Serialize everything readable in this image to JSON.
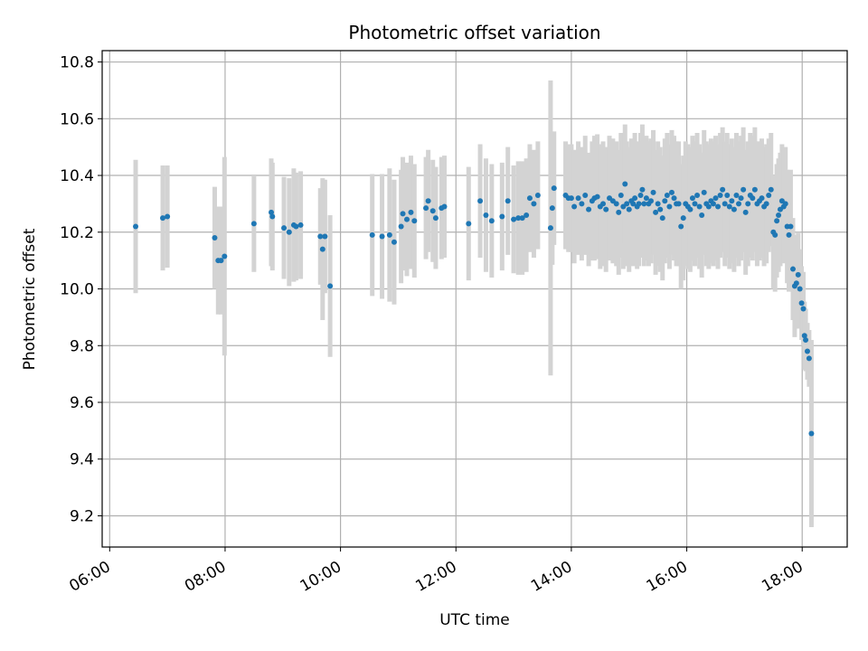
{
  "chart_data": {
    "type": "scatter",
    "title": "Photometric offset variation",
    "xlabel": "UTC time",
    "ylabel": "Photometric offset",
    "x_unit": "hours UTC",
    "xlim": [
      5.87,
      18.78
    ],
    "ylim": [
      9.09,
      10.84
    ],
    "x_ticks": [
      6,
      8,
      10,
      12,
      14,
      16,
      18
    ],
    "x_tick_labels": [
      "06:00",
      "08:00",
      "10:00",
      "12:00",
      "14:00",
      "16:00",
      "18:00"
    ],
    "y_ticks": [
      9.2,
      9.4,
      9.6,
      9.8,
      10.0,
      10.2,
      10.4,
      10.6,
      10.8
    ],
    "y_tick_labels": [
      "9.2",
      "9.4",
      "9.6",
      "9.8",
      "10.0",
      "10.2",
      "10.4",
      "10.6",
      "10.8"
    ],
    "grid": true,
    "colors": {
      "marker": "#1f77b4",
      "errorbar": "#d3d3d3",
      "grid": "#b0b0b0",
      "axes": "#000000"
    },
    "series": [
      {
        "x": [
          6.45,
          6.92,
          7.0,
          7.82,
          7.88,
          7.93,
          7.99,
          8.5,
          8.8,
          8.82,
          9.02,
          9.11,
          9.19,
          9.23,
          9.31,
          9.65,
          9.69,
          9.73,
          9.82,
          10.55,
          10.72,
          10.85,
          10.93,
          11.05,
          11.08,
          11.15,
          11.22,
          11.28,
          11.48,
          11.52,
          11.6,
          11.65,
          11.75,
          11.8,
          12.22,
          12.42,
          12.52,
          12.62,
          12.8,
          12.9,
          13.0,
          13.08,
          13.15,
          13.22,
          13.28,
          13.35,
          13.42,
          13.64,
          13.67,
          13.7
        ],
        "y": [
          10.22,
          10.25,
          10.255,
          10.18,
          10.1,
          10.1,
          10.115,
          10.23,
          10.27,
          10.255,
          10.215,
          10.2,
          10.225,
          10.22,
          10.225,
          10.185,
          10.14,
          10.185,
          10.01,
          10.19,
          10.185,
          10.19,
          10.165,
          10.22,
          10.265,
          10.245,
          10.27,
          10.24,
          10.285,
          10.31,
          10.275,
          10.25,
          10.285,
          10.29,
          10.23,
          10.31,
          10.26,
          10.24,
          10.255,
          10.31,
          10.245,
          10.25,
          10.25,
          10.26,
          10.32,
          10.3,
          10.33,
          10.215,
          10.285,
          10.355
        ],
        "err": [
          0.235,
          0.185,
          0.18,
          0.18,
          0.19,
          0.19,
          0.35,
          0.17,
          0.19,
          0.19,
          0.18,
          0.19,
          0.2,
          0.19,
          0.19,
          0.17,
          0.25,
          0.2,
          0.25,
          0.215,
          0.22,
          0.235,
          0.22,
          0.2,
          0.2,
          0.2,
          0.2,
          0.2,
          0.18,
          0.18,
          0.18,
          0.18,
          0.18,
          0.18,
          0.2,
          0.2,
          0.2,
          0.2,
          0.19,
          0.19,
          0.19,
          0.2,
          0.2,
          0.2,
          0.19,
          0.19,
          0.19,
          0.52,
          0.2,
          0.2
        ]
      },
      {
        "x": [
          13.9,
          13.95,
          14.0,
          14.05,
          14.12,
          14.18,
          14.24,
          14.3,
          14.36,
          14.4,
          14.45,
          14.5,
          14.55,
          14.6,
          14.66,
          14.72,
          14.78,
          14.82,
          14.86,
          14.9,
          14.93,
          14.96,
          15.0,
          15.04,
          15.07,
          15.1,
          15.14,
          15.17,
          15.2,
          15.23,
          15.26,
          15.3,
          15.34,
          15.38,
          15.42,
          15.46,
          15.5,
          15.54,
          15.58,
          15.62,
          15.66,
          15.7,
          15.74,
          15.78,
          15.82,
          15.86,
          15.9,
          15.94,
          15.98,
          16.02,
          16.06,
          16.1,
          16.14,
          16.18,
          16.22,
          16.26,
          16.3,
          16.34,
          16.38,
          16.42,
          16.46,
          16.5,
          16.54,
          16.58,
          16.62,
          16.66,
          16.7,
          16.74,
          16.78,
          16.82,
          16.86,
          16.9,
          16.94,
          16.98,
          17.02,
          17.06,
          17.1,
          17.14,
          17.18,
          17.22,
          17.26,
          17.3,
          17.34,
          17.38,
          17.42,
          17.46
        ],
        "y": [
          10.33,
          10.32,
          10.32,
          10.29,
          10.32,
          10.3,
          10.33,
          10.28,
          10.31,
          10.32,
          10.325,
          10.29,
          10.3,
          10.28,
          10.32,
          10.31,
          10.3,
          10.27,
          10.33,
          10.29,
          10.37,
          10.3,
          10.28,
          10.31,
          10.3,
          10.32,
          10.29,
          10.3,
          10.33,
          10.35,
          10.3,
          10.32,
          10.3,
          10.31,
          10.34,
          10.27,
          10.3,
          10.28,
          10.25,
          10.31,
          10.33,
          10.29,
          10.34,
          10.32,
          10.3,
          10.3,
          10.22,
          10.25,
          10.3,
          10.29,
          10.28,
          10.32,
          10.3,
          10.33,
          10.29,
          10.26,
          10.34,
          10.3,
          10.29,
          10.31,
          10.3,
          10.32,
          10.29,
          10.33,
          10.35,
          10.3,
          10.33,
          10.29,
          10.31,
          10.28,
          10.33,
          10.3,
          10.32,
          10.35,
          10.27,
          10.3,
          10.33,
          10.32,
          10.35,
          10.3,
          10.31,
          10.32,
          10.29,
          10.3,
          10.33,
          10.35
        ],
        "err": [
          0.19,
          0.19,
          0.19,
          0.2,
          0.2,
          0.2,
          0.21,
          0.2,
          0.21,
          0.22,
          0.22,
          0.22,
          0.22,
          0.22,
          0.22,
          0.22,
          0.22,
          0.22,
          0.22,
          0.22,
          0.21,
          0.22,
          0.22,
          0.22,
          0.22,
          0.23,
          0.22,
          0.22,
          0.22,
          0.23,
          0.22,
          0.22,
          0.22,
          0.22,
          0.22,
          0.22,
          0.22,
          0.22,
          0.22,
          0.22,
          0.22,
          0.22,
          0.22,
          0.22,
          0.22,
          0.22,
          0.22,
          0.22,
          0.22,
          0.22,
          0.22,
          0.22,
          0.22,
          0.22,
          0.22,
          0.22,
          0.22,
          0.22,
          0.22,
          0.22,
          0.22,
          0.22,
          0.22,
          0.22,
          0.22,
          0.22,
          0.22,
          0.22,
          0.22,
          0.22,
          0.22,
          0.22,
          0.22,
          0.22,
          0.22,
          0.22,
          0.22,
          0.22,
          0.22,
          0.22,
          0.21,
          0.21,
          0.21,
          0.21,
          0.2,
          0.2
        ]
      },
      {
        "x": [
          17.5,
          17.53,
          17.56,
          17.59,
          17.62,
          17.65,
          17.68,
          17.71,
          17.74,
          17.77,
          17.8,
          17.84,
          17.87,
          17.9,
          17.93,
          17.96,
          17.99,
          18.02,
          18.04,
          18.06,
          18.09,
          18.12,
          18.16
        ],
        "y": [
          10.2,
          10.19,
          10.24,
          10.26,
          10.28,
          10.31,
          10.29,
          10.3,
          10.22,
          10.19,
          10.22,
          10.07,
          10.01,
          10.02,
          10.05,
          10.0,
          9.95,
          9.93,
          9.835,
          9.82,
          9.78,
          9.755,
          9.49
        ],
        "err": [
          0.2,
          0.2,
          0.2,
          0.2,
          0.2,
          0.2,
          0.2,
          0.2,
          0.2,
          0.2,
          0.2,
          0.18,
          0.18,
          0.16,
          0.15,
          0.14,
          0.13,
          0.13,
          0.12,
          0.11,
          0.1,
          0.1,
          0.33
        ]
      }
    ]
  }
}
